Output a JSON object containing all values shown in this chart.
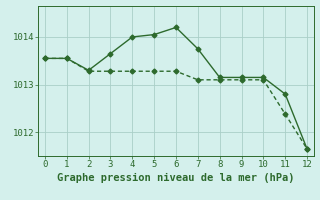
{
  "line1_x": [
    0,
    1,
    2,
    3,
    4,
    5,
    6,
    7,
    8,
    9,
    10,
    11,
    12
  ],
  "line1_y": [
    1013.55,
    1013.55,
    1013.3,
    1013.65,
    1014.0,
    1014.05,
    1014.2,
    1013.75,
    1013.15,
    1013.15,
    1013.15,
    1012.8,
    1011.65
  ],
  "line2_x": [
    0,
    1,
    2,
    3,
    4,
    5,
    6,
    7,
    8,
    9,
    10,
    11,
    12
  ],
  "line2_y": [
    1013.55,
    1013.55,
    1013.28,
    1013.28,
    1013.28,
    1013.28,
    1013.28,
    1013.1,
    1013.1,
    1013.1,
    1013.1,
    1012.38,
    1011.65
  ],
  "line_color": "#2d6a2d",
  "bg_color": "#d4f0ec",
  "grid_color": "#aacfc8",
  "xlabel": "Graphe pression niveau de la mer (hPa)",
  "xlim": [
    -0.3,
    12.3
  ],
  "ylim": [
    1011.5,
    1014.65
  ],
  "yticks": [
    1012,
    1013,
    1014
  ],
  "xticks": [
    0,
    1,
    2,
    3,
    4,
    5,
    6,
    7,
    8,
    9,
    10,
    11,
    12
  ],
  "marker": "D",
  "markersize": 2.5,
  "linewidth": 1.0,
  "xlabel_fontsize": 7.5,
  "tick_fontsize": 6.5
}
